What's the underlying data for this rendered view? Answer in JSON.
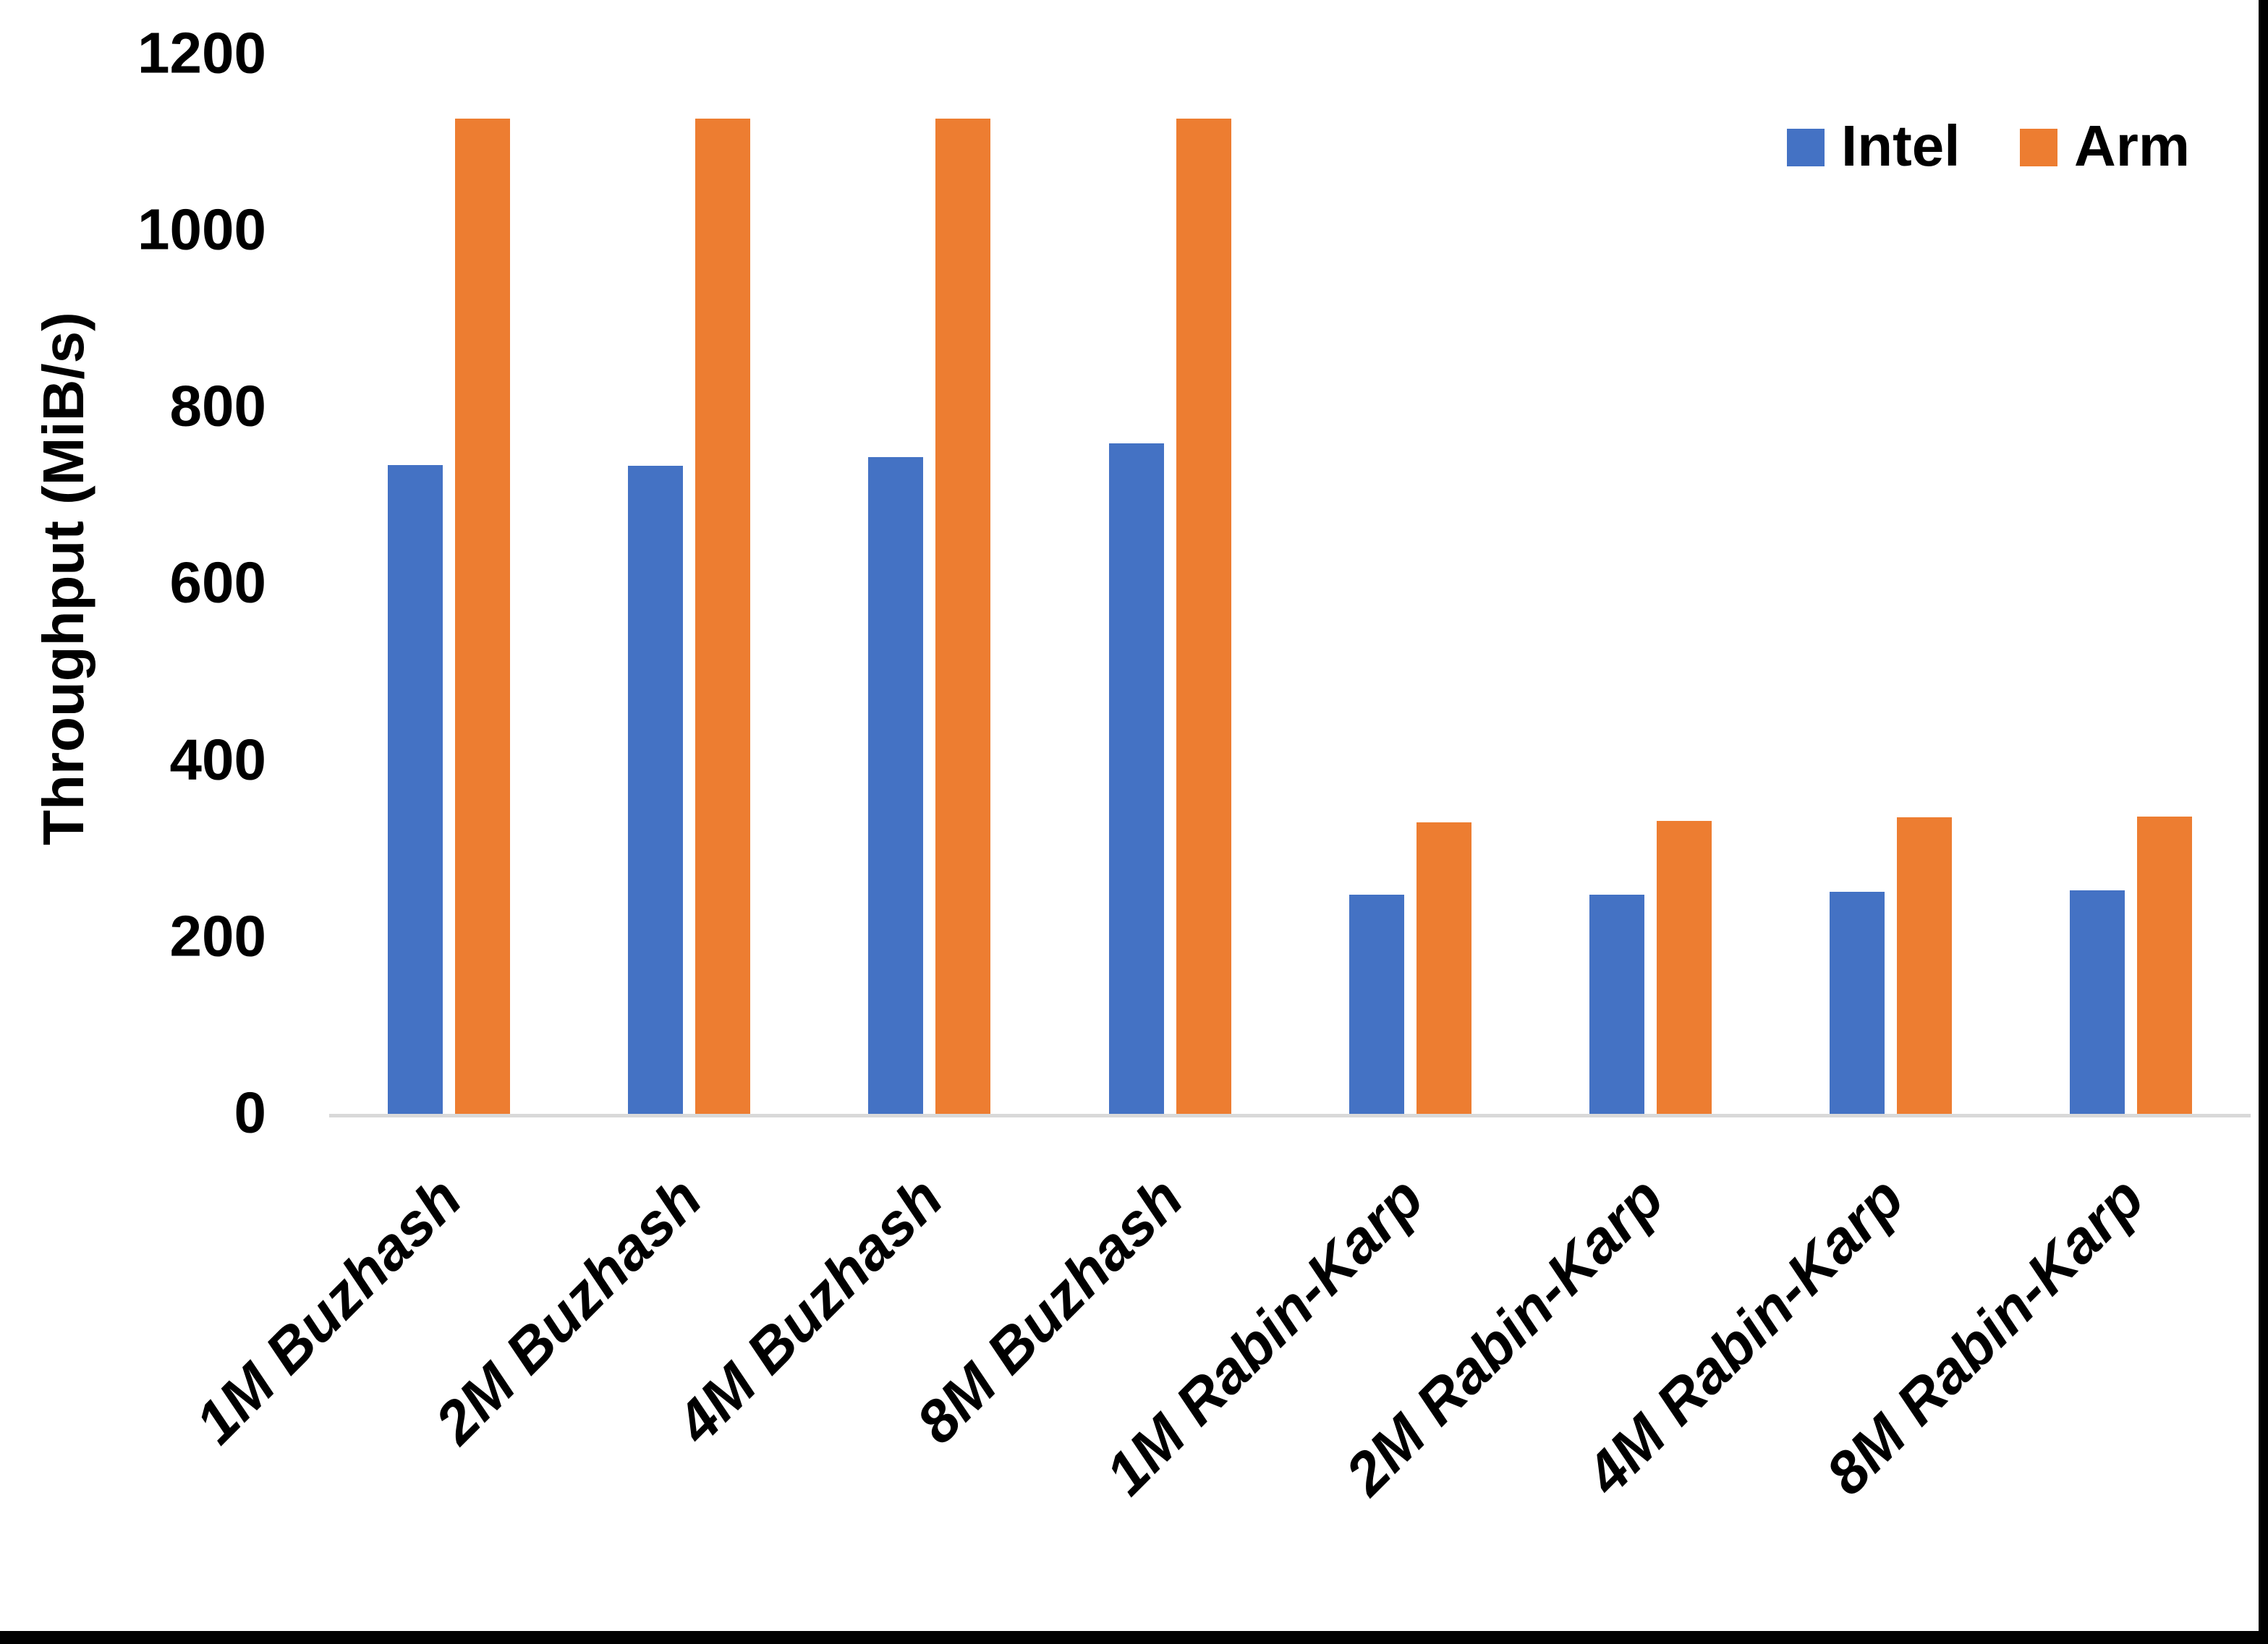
{
  "page": {
    "background": "#FFFFFF",
    "frame_color": "#000000"
  },
  "chart_data": {
    "type": "bar",
    "title": "",
    "xlabel": "",
    "ylabel": "Throughput (MiB/s)",
    "categories": [
      "1M Buzhash",
      "2M Buzhash",
      "4M Buzhash",
      "8M Buzhash",
      "1M Rabin-Karp",
      "2M Rabin-Karp",
      "4M Rabin-Karp",
      "8M Rabin-Karp"
    ],
    "series": [
      {
        "name": "Intel",
        "color": "#4472C4",
        "values": [
          736,
          735,
          745,
          761,
          250,
          250,
          253,
          255
        ]
      },
      {
        "name": "Arm",
        "color": "#ED7D31",
        "values": [
          1128,
          1128,
          1128,
          1128,
          332,
          333,
          337,
          338
        ]
      }
    ],
    "ylim": [
      0,
      1200
    ],
    "yticks": [
      0,
      200,
      400,
      600,
      800,
      1000,
      1200
    ],
    "grid": false,
    "legend_position": "top-right",
    "axis_line_color": "#D9D9D9",
    "text_color": "#000000"
  }
}
